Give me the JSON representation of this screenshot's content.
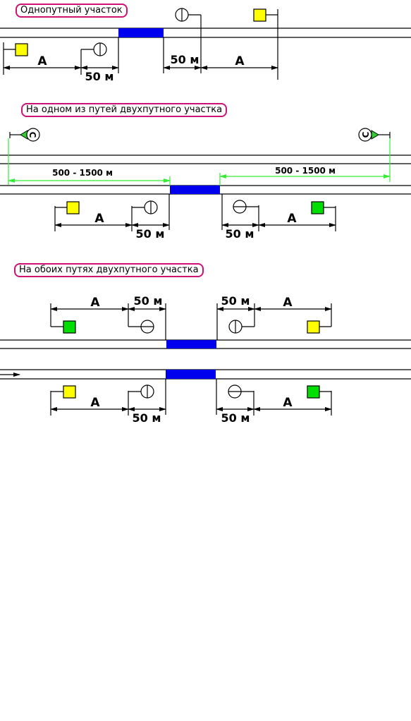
{
  "sections": [
    {
      "title": "Однопутный участок"
    },
    {
      "title": "На одном из путей двухпутного участка"
    },
    {
      "title": "На обоих путях двухпутного участка"
    }
  ],
  "labels": {
    "distance_a": "А",
    "distance_50": "50 м",
    "distance_range": "500 - 1500 м",
    "signal_c": "С"
  },
  "colors": {
    "track": "#000000",
    "work_zone": "#0000ff",
    "signal_yellow": "#ffff00",
    "signal_green": "#00dd00",
    "title_border": "#cc1177",
    "range_line": "#33ee33"
  }
}
